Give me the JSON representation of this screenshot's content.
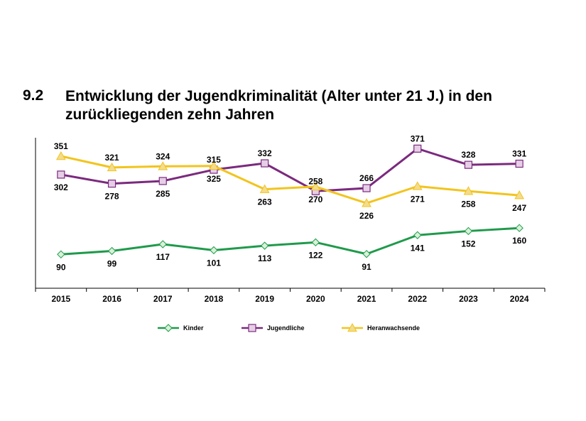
{
  "section": {
    "number": "9.2",
    "title": "Entwicklung der Jugendkriminalität (Alter unter 21 J.) in den zurückliegenden zehn Jahren"
  },
  "colors": {
    "Kinder": "#1f9a4b",
    "Jugendliche": "#7b2a7e",
    "Heranwachsende": "#f2c41d"
  },
  "chart_data": {
    "type": "line",
    "title": "",
    "xlabel": "",
    "ylabel": "",
    "categories": [
      "2015",
      "2016",
      "2017",
      "2018",
      "2019",
      "2020",
      "2021",
      "2022",
      "2023",
      "2024"
    ],
    "ylim": [
      0,
      400
    ],
    "grid": false,
    "legend_position": "bottom",
    "series": [
      {
        "name": "Kinder",
        "marker": "diamond",
        "values": [
          90,
          99,
          117,
          101,
          113,
          122,
          91,
          141,
          152,
          160
        ]
      },
      {
        "name": "Jugendliche",
        "marker": "square",
        "values": [
          302,
          278,
          285,
          315,
          332,
          258,
          266,
          371,
          328,
          331
        ]
      },
      {
        "name": "Heranwachsende",
        "marker": "triangle",
        "values": [
          351,
          321,
          324,
          325,
          263,
          270,
          226,
          271,
          258,
          247
        ]
      }
    ]
  }
}
